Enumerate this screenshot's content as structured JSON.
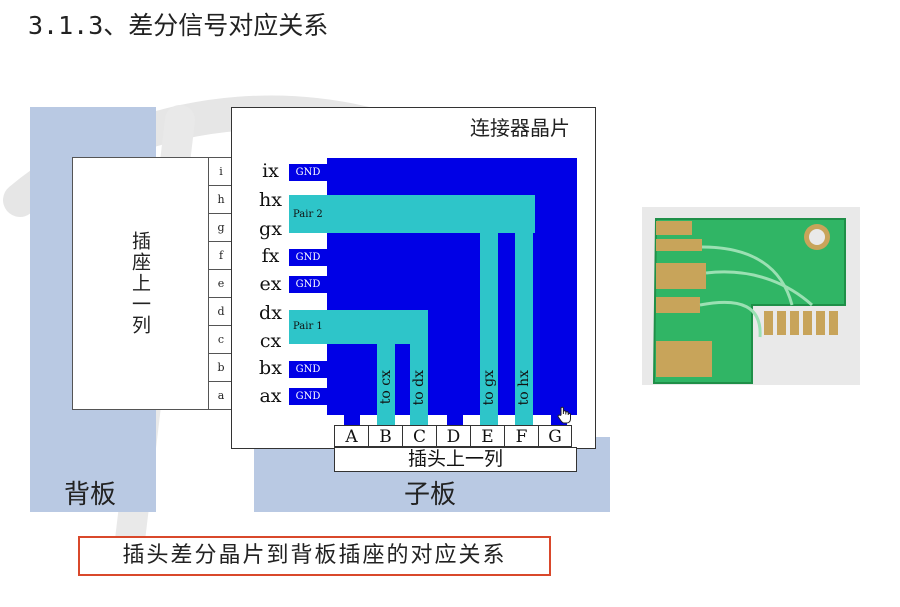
{
  "title": "3.1.3、差分信号对应关系",
  "backplane": {
    "header": "插座上一列",
    "label": "背板",
    "rows": [
      {
        "letter": "i",
        "value": "GND"
      },
      {
        "letter": "h",
        "value": "hx"
      },
      {
        "letter": "g",
        "value": "gx"
      },
      {
        "letter": "f",
        "value": "GND"
      },
      {
        "letter": "e",
        "value": "GND"
      },
      {
        "letter": "d",
        "value": "dx"
      },
      {
        "letter": "c",
        "value": "cx"
      },
      {
        "letter": "b",
        "value": "GND"
      },
      {
        "letter": "a",
        "value": "GND"
      }
    ]
  },
  "daughter": {
    "label": "子板",
    "chip_title": "连接器晶片",
    "pins": [
      "ix",
      "hx",
      "gx",
      "fx",
      "ex",
      "dx",
      "cx",
      "bx",
      "ax"
    ],
    "gnd": "GND",
    "pair2": "Pair 2",
    "pair1": "Pair 1",
    "routes": [
      "to cx",
      "to dx",
      "to gx",
      "to hx"
    ],
    "plug_cols": [
      "A",
      "B",
      "C",
      "D",
      "E",
      "F",
      "G"
    ],
    "plug_label": "插头上一列"
  },
  "caption": "插头差分晶片到背板插座的对应关系",
  "colors": {
    "gnd_blue": "#0000e6",
    "pair_teal": "#2ec5c9",
    "panel_bg": "#b9c9e3",
    "caption_border": "#d9482b"
  }
}
